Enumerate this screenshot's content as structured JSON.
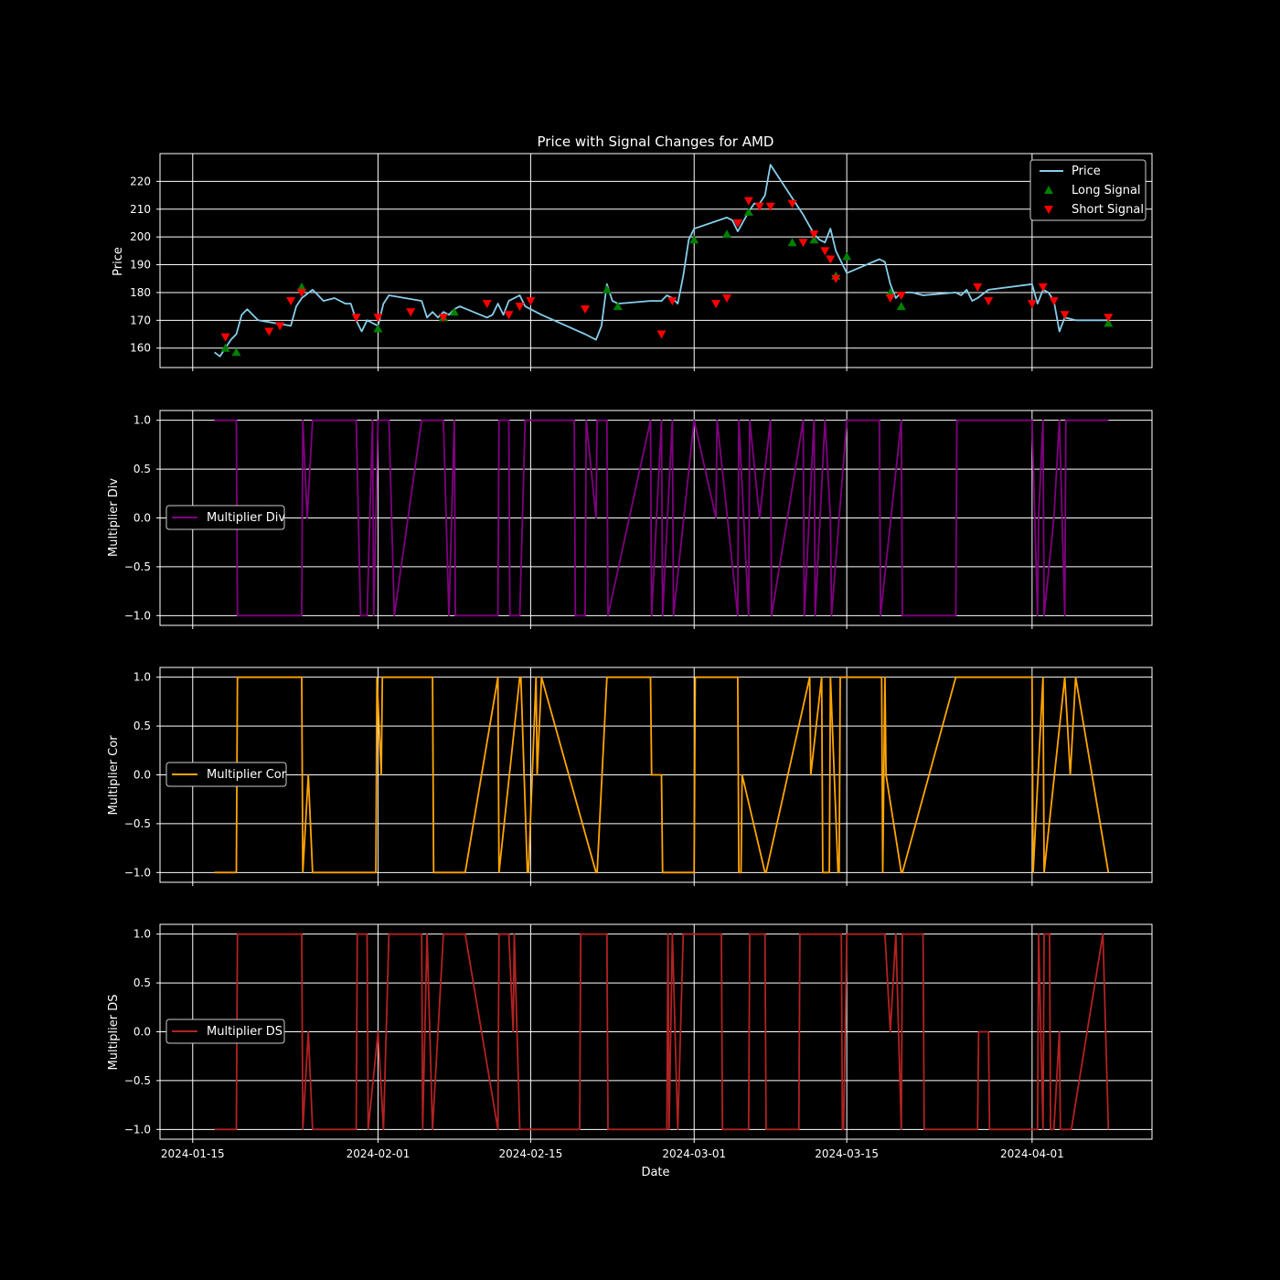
{
  "chart_data": [
    {
      "type": "line",
      "title": "Price with Signal Changes for AMD",
      "xlabel": "",
      "ylabel": "Price",
      "ylim": [
        153,
        230
      ],
      "yticks": [
        160,
        170,
        180,
        190,
        200,
        210,
        220
      ],
      "xlim": [
        "2024-01-12",
        "2024-04-12"
      ],
      "grid": true,
      "legend": {
        "placement": "upper right",
        "entries": [
          "Price",
          "Long Signal",
          "Short Signal"
        ]
      },
      "colors": {
        "price": "#87ceeb",
        "long": "#008000",
        "short": "#ff0000"
      },
      "series": [
        {
          "name": "Price",
          "x": [
            "2024-01-17",
            "2024-01-17.5",
            "2024-01-18",
            "2024-01-18.5",
            "2024-01-19",
            "2024-01-19.5",
            "2024-01-20",
            "2024-01-21",
            "2024-01-24",
            "2024-01-24.5",
            "2024-01-25",
            "2024-01-26",
            "2024-01-26.5",
            "2024-01-27",
            "2024-01-28",
            "2024-01-29",
            "2024-01-29.5",
            "2024-01-30",
            "2024-01-30.5",
            "2024-01-31",
            "2024-02-01",
            "2024-02-01.5",
            "2024-02-02",
            "2024-02-05",
            "2024-02-05.5",
            "2024-02-06",
            "2024-02-06.5",
            "2024-02-07",
            "2024-02-07.5",
            "2024-02-08",
            "2024-02-08.5",
            "2024-02-11",
            "2024-02-11.5",
            "2024-02-12",
            "2024-02-12.5",
            "2024-02-13",
            "2024-02-14",
            "2024-02-14.5",
            "2024-02-15",
            "2024-02-16",
            "2024-02-20",
            "2024-02-21",
            "2024-02-21.5",
            "2024-02-22",
            "2024-02-22.5",
            "2024-02-23",
            "2024-02-26",
            "2024-02-27",
            "2024-02-27.5",
            "2024-02-28",
            "2024-02-28.5",
            "2024-02-29",
            "2024-02-29.5",
            "2024-03-01",
            "2024-03-04",
            "2024-03-04.5",
            "2024-03-05",
            "2024-03-06",
            "2024-03-06.5",
            "2024-03-07",
            "2024-03-07.5",
            "2024-03-08",
            "2024-03-11",
            "2024-03-12",
            "2024-03-12.5",
            "2024-03-13",
            "2024-03-13.5",
            "2024-03-14",
            "2024-03-15",
            "2024-03-18",
            "2024-03-18.5",
            "2024-03-19",
            "2024-03-19.5",
            "2024-03-20",
            "2024-03-21",
            "2024-03-22",
            "2024-03-25",
            "2024-03-25.5",
            "2024-03-26",
            "2024-03-26.5",
            "2024-03-27",
            "2024-03-28",
            "2024-04-01",
            "2024-04-01.5",
            "2024-04-02",
            "2024-04-02.5",
            "2024-04-03",
            "2024-04-03.5",
            "2024-04-04",
            "2024-04-05",
            "2024-04-08"
          ],
          "y": [
            158.5,
            157,
            160,
            163,
            165,
            172,
            174,
            170,
            168,
            175,
            178,
            181,
            179,
            177,
            178,
            176,
            176,
            170,
            166,
            170,
            168,
            176,
            179,
            177,
            171,
            173,
            171,
            173,
            172,
            174,
            175,
            171,
            172,
            176,
            172,
            177,
            179,
            175,
            174,
            172,
            165,
            163,
            168,
            183,
            177,
            176,
            177,
            177,
            179,
            178,
            176,
            186,
            199,
            203,
            207,
            206,
            202,
            209,
            212,
            212,
            215,
            226,
            208,
            201,
            199,
            198,
            203,
            195,
            187,
            192,
            191,
            183,
            178,
            180,
            180,
            179,
            180,
            179,
            181,
            177,
            178,
            181,
            183,
            176,
            181,
            180,
            177,
            166,
            171,
            170,
            170
          ]
        }
      ],
      "long_signals": {
        "x": [
          "2024-01-18",
          "2024-01-19",
          "2024-01-25",
          "2024-02-01",
          "2024-02-07",
          "2024-02-08",
          "2024-02-22",
          "2024-02-23",
          "2024-03-01",
          "2024-03-04",
          "2024-03-06",
          "2024-03-10",
          "2024-03-12",
          "2024-03-14",
          "2024-03-15",
          "2024-03-19",
          "2024-03-20",
          "2024-04-08"
        ],
        "y": [
          160,
          158.5,
          182,
          167,
          171,
          173,
          181,
          175,
          199,
          201,
          209,
          198,
          199,
          186,
          193,
          180,
          175,
          169
        ]
      },
      "short_signals": {
        "x": [
          "2024-01-18",
          "2024-01-22",
          "2024-01-23",
          "2024-01-24",
          "2024-01-25",
          "2024-01-30",
          "2024-02-01",
          "2024-02-04",
          "2024-02-07",
          "2024-02-11",
          "2024-02-13",
          "2024-02-14",
          "2024-02-15",
          "2024-02-20",
          "2024-02-27",
          "2024-02-28",
          "2024-03-03",
          "2024-03-04",
          "2024-03-05",
          "2024-03-06",
          "2024-03-07",
          "2024-03-08",
          "2024-03-10",
          "2024-03-11",
          "2024-03-12",
          "2024-03-13",
          "2024-03-13.5",
          "2024-03-14",
          "2024-03-19",
          "2024-03-20",
          "2024-03-27",
          "2024-03-28",
          "2024-04-01",
          "2024-04-02",
          "2024-04-03",
          "2024-04-04",
          "2024-04-08"
        ],
        "y": [
          164,
          166,
          168,
          177,
          180,
          171,
          171,
          173,
          171,
          176,
          172,
          175,
          177,
          174,
          165,
          177,
          176,
          178,
          205,
          213,
          211,
          211,
          212,
          198,
          201,
          195,
          192,
          185,
          178,
          179,
          182,
          177,
          176,
          182,
          177,
          172,
          171
        ]
      }
    },
    {
      "type": "line",
      "xlabel": "",
      "ylabel": "Multiplier Div",
      "ylim": [
        -1.1,
        1.1
      ],
      "yticks": [
        -1.0,
        -0.5,
        0.0,
        0.5,
        1.0
      ],
      "grid": true,
      "legend": {
        "placement": "center left",
        "entries": [
          "Multiplier Div"
        ]
      },
      "color": "#800080",
      "series": [
        {
          "name": "Multiplier Div",
          "x": [
            "2024-01-17",
            "2024-01-18",
            "2024-01-19",
            "2024-01-19.1",
            "2024-01-25",
            "2024-01-25.1",
            "2024-01-25.5",
            "2024-01-26",
            "2024-01-26.1",
            "2024-01-30",
            "2024-01-30.4",
            "2024-01-31",
            "2024-01-31.5",
            "2024-01-31.6",
            "2024-02-01",
            "2024-02-02",
            "2024-02-02.5",
            "2024-02-05",
            "2024-02-07",
            "2024-02-07.5",
            "2024-02-08",
            "2024-02-08.1",
            "2024-02-12",
            "2024-02-12.1",
            "2024-02-13",
            "2024-02-13.1",
            "2024-02-14",
            "2024-02-14.5",
            "2024-02-14.6",
            "2024-02-19",
            "2024-02-19.1",
            "2024-02-20",
            "2024-02-20.1",
            "2024-02-21",
            "2024-02-21.1",
            "2024-02-22",
            "2024-02-22.1",
            "2024-02-26",
            "2024-02-26.1",
            "2024-02-27",
            "2024-02-27.1",
            "2024-02-28",
            "2024-02-28.1",
            "2024-03-01",
            "2024-03-03",
            "2024-03-03.1",
            "2024-03-05",
            "2024-03-05.1",
            "2024-03-06",
            "2024-03-06.1",
            "2024-03-07",
            "2024-03-08",
            "2024-03-08.1",
            "2024-03-11",
            "2024-03-11.1",
            "2024-03-12",
            "2024-03-12.1",
            "2024-03-13",
            "2024-03-13.5",
            "2024-03-13.6",
            "2024-03-15",
            "2024-03-15.1",
            "2024-03-18",
            "2024-03-18.1",
            "2024-03-20",
            "2024-03-20.1",
            "2024-03-25",
            "2024-03-25.1",
            "2024-04-01",
            "2024-04-01.5",
            "2024-04-01.6",
            "2024-04-02",
            "2024-04-02.1",
            "2024-04-03",
            "2024-04-03.5",
            "2024-04-04",
            "2024-04-04.1",
            "2024-04-08"
          ],
          "y": [
            1,
            1,
            1,
            -1,
            -1,
            1,
            0,
            1,
            1,
            1,
            -1,
            -1,
            1,
            -1,
            1,
            1,
            -1,
            1,
            1,
            -1,
            1,
            -1,
            -1,
            1,
            1,
            -1,
            -1,
            1,
            1,
            1,
            -1,
            -1,
            1,
            0,
            1,
            1,
            -1,
            1,
            -1,
            1,
            -1,
            1,
            -1,
            1,
            0,
            1,
            -1,
            1,
            -1,
            1,
            0,
            1,
            -1,
            1,
            -1,
            1,
            -1,
            1,
            0,
            -1,
            1,
            1,
            1,
            -1,
            1,
            -1,
            -1,
            1,
            1,
            -1,
            0,
            1,
            -1,
            0,
            1,
            -1,
            1,
            1
          ]
        }
      ]
    },
    {
      "type": "line",
      "xlabel": "",
      "ylabel": "Multiplier Cor",
      "ylim": [
        -1.1,
        1.1
      ],
      "yticks": [
        -1.0,
        -0.5,
        0.0,
        0.5,
        1.0
      ],
      "grid": true,
      "legend": {
        "placement": "center left",
        "entries": [
          "Multiplier Cor"
        ]
      },
      "color": "#ffa500",
      "series": [
        {
          "name": "Multiplier Cor",
          "x": [
            "2024-01-17",
            "2024-01-19",
            "2024-01-19.1",
            "2024-01-25",
            "2024-01-25.1",
            "2024-01-25.6",
            "2024-01-26",
            "2024-01-26.1",
            "2024-01-31.8",
            "2024-01-31.9",
            "2024-02-01.3",
            "2024-02-01.4",
            "2024-02-06",
            "2024-02-06.1",
            "2024-02-09",
            "2024-02-12",
            "2024-02-12.1",
            "2024-02-14",
            "2024-02-14.1",
            "2024-02-14.7",
            "2024-02-14.8",
            "2024-02-15.5",
            "2024-02-15.6",
            "2024-02-16",
            "2024-02-21",
            "2024-02-21.1",
            "2024-02-22",
            "2024-02-22.1",
            "2024-02-26",
            "2024-02-26.1",
            "2024-02-27",
            "2024-02-27.1",
            "2024-03-01",
            "2024-03-01.1",
            "2024-03-05",
            "2024-03-05.1",
            "2024-03-05.3",
            "2024-03-05.4",
            "2024-03-07.5",
            "2024-03-07.6",
            "2024-03-11.6",
            "2024-03-11.7",
            "2024-03-12.7",
            "2024-03-12.8",
            "2024-03-13.4",
            "2024-03-13.5",
            "2024-03-14.2",
            "2024-03-14.3",
            "2024-03-14.4",
            "2024-03-18.2",
            "2024-03-18.3",
            "2024-03-18.5",
            "2024-03-18.6",
            "2024-03-20",
            "2024-03-20.1",
            "2024-03-25",
            "2024-03-25.1",
            "2024-04-01",
            "2024-04-01.1",
            "2024-04-02",
            "2024-04-02.1",
            "2024-04-04",
            "2024-04-04.5",
            "2024-04-05",
            "2024-04-08"
          ],
          "y": [
            -1,
            -1,
            1,
            1,
            -1,
            0,
            -1,
            -1,
            -1,
            1,
            0,
            1,
            1,
            -1,
            -1,
            1,
            -1,
            1,
            1,
            -1,
            -1,
            1,
            0,
            1,
            -1,
            -1,
            1,
            1,
            1,
            0,
            0,
            -1,
            -1,
            1,
            1,
            -1,
            -1,
            0,
            -1,
            -1,
            1,
            0,
            1,
            -1,
            -1,
            1,
            -1,
            -1,
            1,
            1,
            -1,
            1,
            0,
            -1,
            -1,
            1,
            1,
            1,
            -1,
            1,
            -1,
            1,
            0,
            1,
            -1
          ]
        }
      ]
    },
    {
      "type": "line",
      "xlabel": "Date",
      "ylabel": "Multiplier DS",
      "ylim": [
        -1.1,
        1.1
      ],
      "yticks": [
        -1.0,
        -0.5,
        0.0,
        0.5,
        1.0
      ],
      "xticks": [
        "2024-01-15",
        "2024-02-01",
        "2024-02-15",
        "2024-03-01",
        "2024-03-15",
        "2024-04-01"
      ],
      "grid": true,
      "legend": {
        "placement": "center left",
        "entries": [
          "Multiplier DS"
        ]
      },
      "color": "#b22222",
      "series": [
        {
          "name": "Multiplier DS",
          "x": [
            "2024-01-17",
            "2024-01-19",
            "2024-01-19.1",
            "2024-01-25",
            "2024-01-25.1",
            "2024-01-25.6",
            "2024-01-26",
            "2024-01-26.1",
            "2024-01-30",
            "2024-01-30.1",
            "2024-01-31",
            "2024-01-31.1",
            "2024-02-01",
            "2024-02-01.5",
            "2024-02-02",
            "2024-02-02.1",
            "2024-02-05",
            "2024-02-05.1",
            "2024-02-05.5",
            "2024-02-06",
            "2024-02-07",
            "2024-02-09",
            "2024-02-12",
            "2024-02-12.1",
            "2024-02-13",
            "2024-02-13.4",
            "2024-02-13.5",
            "2024-02-14",
            "2024-02-14.1",
            "2024-02-19.5",
            "2024-02-19.6",
            "2024-02-22",
            "2024-02-22.1",
            "2024-02-27.5",
            "2024-02-27.6",
            "2024-02-27.7",
            "2024-02-28",
            "2024-02-28.5",
            "2024-02-29",
            "2024-03-03.5",
            "2024-03-03.6",
            "2024-03-06",
            "2024-03-06.1",
            "2024-03-07.5",
            "2024-03-07.6",
            "2024-03-10.6",
            "2024-03-10.7",
            "2024-03-14.5",
            "2024-03-14.6",
            "2024-03-14.7",
            "2024-03-15",
            "2024-03-18.5",
            "2024-03-19",
            "2024-03-19.5",
            "2024-03-20",
            "2024-03-20.1",
            "2024-03-22",
            "2024-03-22.1",
            "2024-03-27",
            "2024-03-27.1",
            "2024-03-28",
            "2024-03-28.1",
            "2024-04-01.5",
            "2024-04-01.6",
            "2024-04-02",
            "2024-04-02.1",
            "2024-04-02.6",
            "2024-04-02.7",
            "2024-04-03",
            "2024-04-03.5",
            "2024-04-03.6",
            "2024-04-04.6",
            "2024-04-07.5",
            "2024-04-08"
          ],
          "y": [
            -1,
            -1,
            1,
            1,
            -1,
            0,
            -1,
            -1,
            -1,
            1,
            1,
            -1,
            0,
            -1,
            1,
            1,
            1,
            -1,
            1,
            -1,
            1,
            1,
            -1,
            1,
            1,
            0,
            1,
            -1,
            -1,
            -1,
            1,
            1,
            -1,
            -1,
            1,
            -1,
            1,
            -1,
            1,
            1,
            -1,
            -1,
            1,
            1,
            -1,
            -1,
            1,
            1,
            -1,
            -1,
            1,
            1,
            0,
            1,
            -1,
            1,
            1,
            -1,
            -1,
            0,
            0,
            -1,
            -1,
            1,
            -1,
            1,
            1,
            -1,
            -1,
            0,
            -1,
            -1,
            1,
            -1
          ]
        }
      ]
    }
  ],
  "texts": {
    "title": "Price with Signal Changes for AMD",
    "ylabels": [
      "Price",
      "Multiplier Div",
      "Multiplier Cor",
      "Multiplier DS"
    ],
    "xlabel": "Date",
    "legend_price": "Price",
    "legend_long": "Long Signal",
    "legend_short": "Short Signal",
    "legend_div": "Multiplier Div",
    "legend_cor": "Multiplier Cor",
    "legend_ds": "Multiplier DS"
  }
}
